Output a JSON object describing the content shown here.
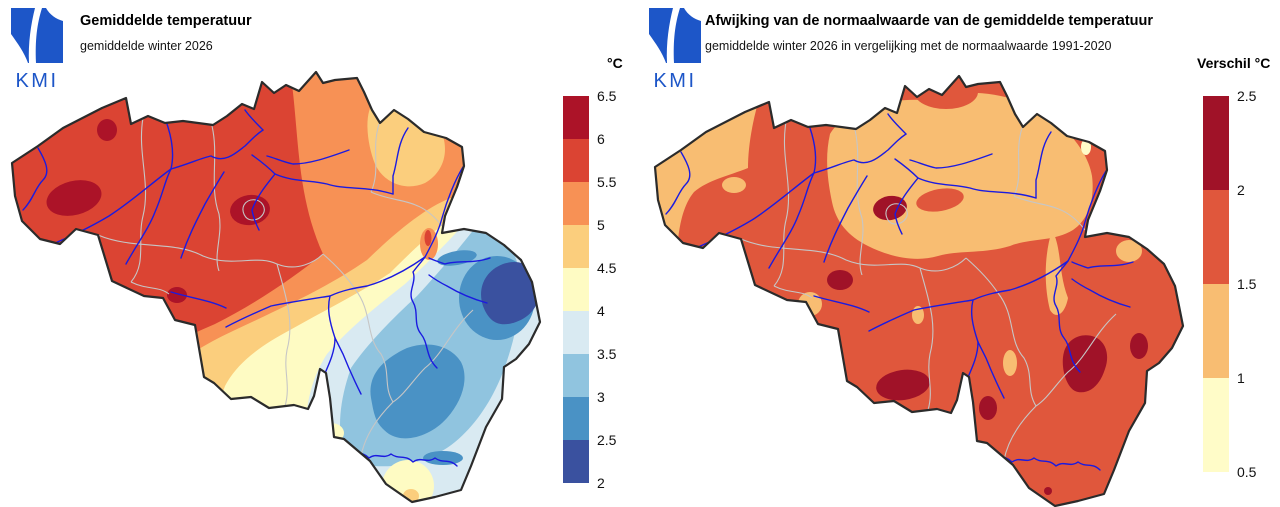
{
  "brand": {
    "logo_text": "KMI",
    "logo_color": "#1d56c8"
  },
  "left_panel": {
    "title": "Gemiddelde temperatuur",
    "subtitle": "gemiddelde winter 2026",
    "legend": {
      "title": "°C",
      "tick_labels": [
        "6.5",
        "6",
        "5.5",
        "5",
        "4.5",
        "4",
        "3.5",
        "3",
        "2.5",
        "2"
      ],
      "colors": [
        "#AC1328",
        "#DB4433",
        "#F79155",
        "#FBCE7D",
        "#FEFBC3",
        "#D9EAF2",
        "#90C4DF",
        "#4A92C5",
        "#3A519F"
      ]
    }
  },
  "right_panel": {
    "title": "Afwijking van de normaalwaarde van de gemiddelde temperatuur",
    "subtitle": "gemiddelde winter 2026 in vergelijking met de normaalwaarde 1991-2020",
    "legend": {
      "title": "Verschil °C",
      "tick_labels": [
        "2.5",
        "2",
        "1.5",
        "1",
        "0.5"
      ],
      "colors": [
        "#A01228",
        "#E0573C",
        "#F8BD72",
        "#FFFCC8"
      ]
    }
  },
  "map": {
    "colors": {
      "border": "#2b2b2b",
      "river": "#1b1be0",
      "province": "#c6c6c6",
      "background": "#ffffff"
    }
  }
}
